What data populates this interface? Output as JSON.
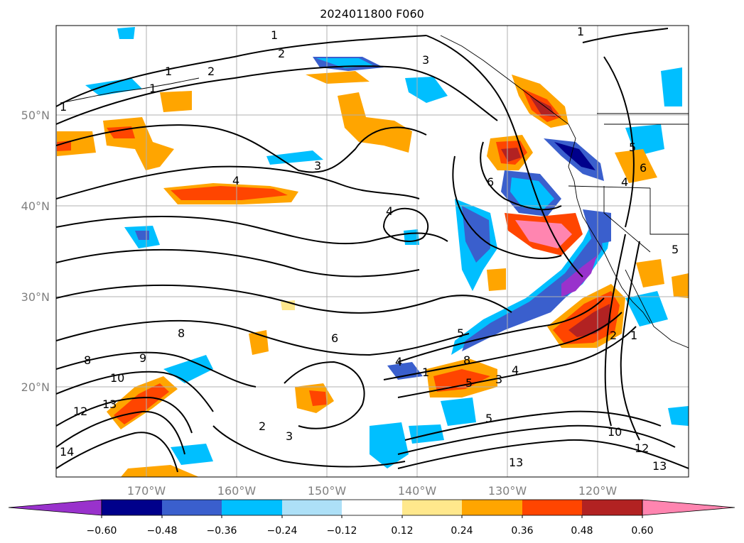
{
  "title": "2024011800 F060",
  "lat_labels": [
    "50°N",
    "40°N",
    "30°N",
    "20°N"
  ],
  "lon_labels": [
    "170°W",
    "160°W",
    "150°W",
    "140°W",
    "130°W",
    "120°W"
  ],
  "colorbar": {
    "labels": [
      "−0.60",
      "−0.48",
      "−0.36",
      "−0.24",
      "−0.12",
      "0.12",
      "0.24",
      "0.36",
      "0.48",
      "0.60"
    ],
    "colors": [
      "#9932CC",
      "#00008B",
      "#3A5FCD",
      "#00BFFF",
      "#ADE0F7",
      "#FFFFFF",
      "#FFE88C",
      "#FFA500",
      "#FF4500",
      "#B22222",
      "#FF85B0"
    ]
  },
  "contour_labels": [
    "1",
    "1",
    "1",
    "1",
    "2",
    "2",
    "3",
    "3",
    "4",
    "4",
    "4",
    "5",
    "6",
    "8",
    "8",
    "9",
    "10",
    "12",
    "13",
    "14",
    "2",
    "3",
    "6",
    "1",
    "5",
    "3",
    "4",
    "5",
    "8",
    "10",
    "12",
    "13",
    "13",
    "1",
    "2",
    "1",
    "6",
    "5",
    "4",
    "5"
  ]
}
